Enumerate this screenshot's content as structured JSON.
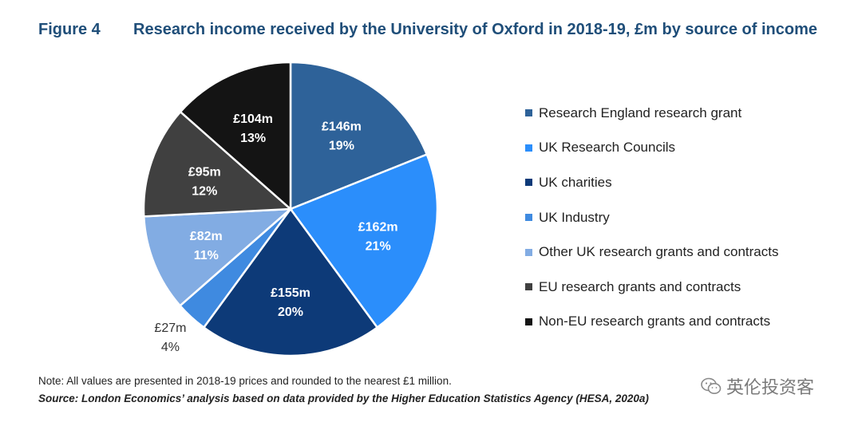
{
  "figure": {
    "label": "Figure 4",
    "title": "Research income received by the University of Oxford in 2018-19, £m by source of income"
  },
  "chart_data": {
    "type": "pie",
    "title": "Research income received by the University of Oxford in 2018-19, £m by source of income",
    "unit": "£m",
    "legend_position": "right",
    "slices": [
      {
        "name": "Research England research grant",
        "value": 146,
        "value_label": "£146m",
        "pct_label": "19%",
        "color": "#2e6299"
      },
      {
        "name": "UK Research Councils",
        "value": 162,
        "value_label": "£162m",
        "pct_label": "21%",
        "color": "#2b8efb"
      },
      {
        "name": "UK charities",
        "value": 155,
        "value_label": "£155m",
        "pct_label": "20%",
        "color": "#0d3a78"
      },
      {
        "name": "UK Industry",
        "value": 27,
        "value_label": "£27m",
        "pct_label": "4%",
        "color": "#3f8ae0"
      },
      {
        "name": "Other UK research grants and contracts",
        "value": 82,
        "value_label": "£82m",
        "pct_label": "11%",
        "color": "#82ace3"
      },
      {
        "name": "EU research grants and contracts",
        "value": 95,
        "value_label": "£95m",
        "pct_label": "12%",
        "color": "#404040"
      },
      {
        "name": "Non-EU research grants and contracts",
        "value": 104,
        "value_label": "£104m",
        "pct_label": "13%",
        "color": "#141414"
      }
    ]
  },
  "footer": {
    "note": "Note: All values are presented in 2018-19 prices and rounded to the nearest £1 million.",
    "source": "Source: London Economics’ analysis based on data provided by the Higher Education Statistics Agency (HESA, 2020a)"
  },
  "watermark": {
    "text": "英伦投资客",
    "icon": "wechat-icon"
  }
}
